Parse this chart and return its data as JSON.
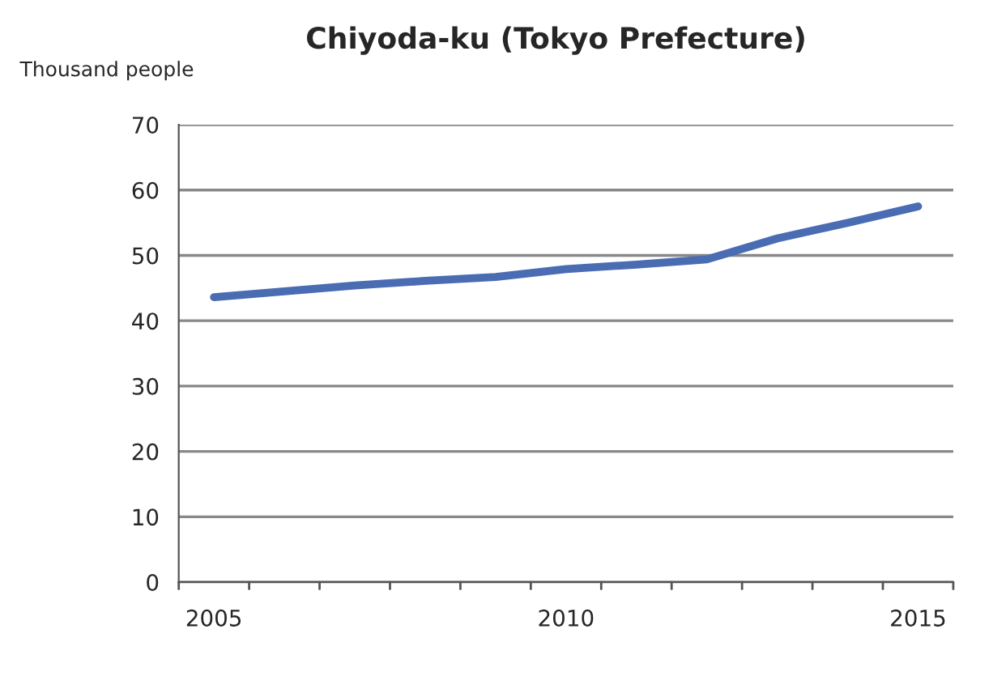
{
  "chart_data": {
    "type": "line",
    "title": "Chiyoda-ku (Tokyo Prefecture)",
    "ylabel": "Thousand people",
    "categories": [
      "2005",
      null,
      null,
      null,
      null,
      "2010",
      null,
      null,
      null,
      null,
      "2015"
    ],
    "series": [
      {
        "color": "#4a6cb3",
        "values": [
          43.6,
          44.5,
          45.4,
          46.1,
          46.7,
          47.9,
          48.6,
          49.4,
          52.6,
          55.0,
          57.5
        ]
      }
    ],
    "ylim": [
      0,
      70
    ],
    "yticks": [
      0,
      10,
      20,
      30,
      40,
      50,
      60,
      70
    ],
    "grid": "y",
    "marker": "none",
    "line_style": "solid"
  }
}
